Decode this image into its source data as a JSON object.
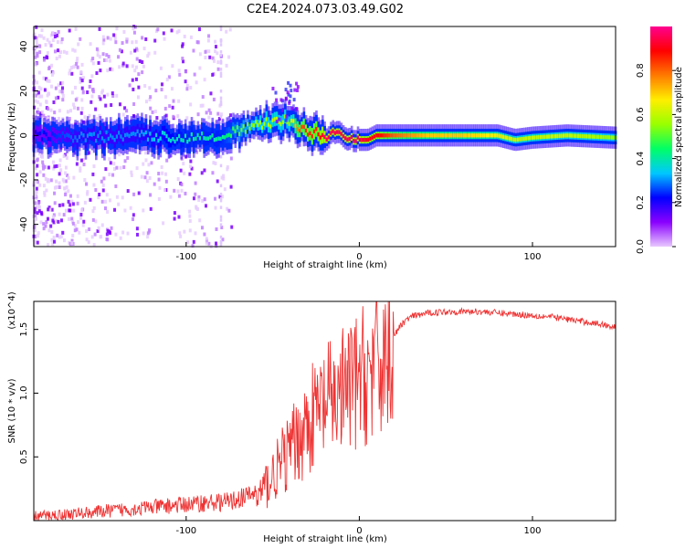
{
  "title": "C2E4.2024.073.03.49.G02",
  "chart_data": [
    {
      "type": "heatmap",
      "xlabel": "Height of straight line (km)",
      "ylabel": "Frequency (Hz)",
      "xlim": [
        -188,
        148
      ],
      "ylim": [
        -50,
        49
      ],
      "xticks": [
        -100,
        0,
        100
      ],
      "yticks": [
        -40,
        -20,
        0,
        20,
        40
      ],
      "colorbar": {
        "label": "Normalized spectral amplitude",
        "range": [
          0,
          1
        ],
        "ticks": [
          "0.0",
          "0.2",
          "0.4",
          "0.6",
          "0.8"
        ],
        "colors": [
          "#e8c8ff",
          "#8a00ff",
          "#0000ff",
          "#00c8ff",
          "#00ff66",
          "#99ff00",
          "#ffee00",
          "#ff7a00",
          "#ff0000",
          "#ff0090"
        ]
      },
      "ridge": {
        "x": [
          -188,
          -160,
          -130,
          -100,
          -80,
          -70,
          -60,
          -50,
          -40,
          -35,
          -30,
          -25,
          -20,
          -10,
          0,
          5,
          10,
          20,
          40,
          60,
          80,
          90,
          100,
          120,
          148
        ],
        "frequency": [
          0,
          -1,
          0,
          -1,
          0,
          2,
          4,
          6,
          7,
          4,
          2,
          1,
          0,
          0,
          -2,
          -2,
          0,
          0,
          0,
          0,
          0,
          -2,
          -1,
          0,
          -1
        ],
        "amplitude": [
          0.2,
          0.3,
          0.3,
          0.4,
          0.4,
          0.5,
          0.55,
          0.6,
          0.55,
          0.8,
          0.85,
          0.85,
          0.95,
          0.95,
          0.95,
          0.9,
          0.9,
          0.8,
          0.7,
          0.7,
          0.65,
          0.6,
          0.6,
          0.6,
          0.55
        ]
      }
    },
    {
      "type": "line",
      "xlabel": "Height of straight line (km)",
      "ylabel": "SNR (10 * v/v)",
      "y_multiplier": "(x10^4)",
      "xlim": [
        -188,
        148
      ],
      "ylim": [
        0,
        1.72
      ],
      "xticks": [
        -100,
        0,
        100
      ],
      "yticks": [
        0.5,
        1.0,
        1.5
      ],
      "color": "#ee3333",
      "series": [
        {
          "x": [
            -188,
            -170,
            -150,
            -130,
            -110,
            -90,
            -75,
            -65,
            -58,
            -50,
            -45,
            -40,
            -35,
            -30,
            -25,
            -20,
            -15,
            -10,
            -5,
            0,
            5,
            10,
            15,
            20,
            25,
            30,
            40,
            50,
            60,
            70,
            80,
            90,
            100,
            110,
            120,
            130,
            140,
            148
          ],
          "values": [
            0.02,
            0.03,
            0.05,
            0.07,
            0.09,
            0.11,
            0.12,
            0.16,
            0.2,
            0.35,
            0.45,
            0.55,
            0.65,
            0.75,
            0.85,
            0.9,
            0.95,
            1.0,
            1.05,
            1.1,
            1.15,
            1.2,
            1.3,
            1.45,
            1.55,
            1.6,
            1.63,
            1.64,
            1.64,
            1.64,
            1.63,
            1.62,
            1.61,
            1.6,
            1.58,
            1.56,
            1.54,
            1.52
          ]
        }
      ]
    }
  ]
}
